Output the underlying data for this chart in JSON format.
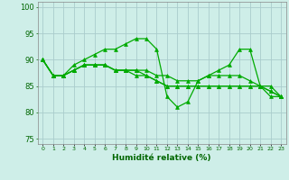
{
  "title": "",
  "xlabel": "Humidité relative (%)",
  "ylabel": "",
  "background_color": "#ceeee8",
  "grid_color": "#aacccc",
  "line_color": "#00aa00",
  "xlim": [
    -0.5,
    23.5
  ],
  "ylim": [
    74,
    101
  ],
  "yticks": [
    75,
    80,
    85,
    90,
    95,
    100
  ],
  "xtick_labels": [
    "0",
    "1",
    "2",
    "3",
    "4",
    "5",
    "6",
    "7",
    "8",
    "9",
    "10",
    "11",
    "12",
    "13",
    "14",
    "15",
    "16",
    "17",
    "18",
    "19",
    "20",
    "21",
    "22",
    "23"
  ],
  "series": [
    [
      90,
      87,
      87,
      89,
      90,
      91,
      92,
      92,
      93,
      94,
      94,
      92,
      83,
      81,
      82,
      86,
      87,
      88,
      89,
      92,
      92,
      85,
      83,
      83
    ],
    [
      90,
      87,
      87,
      88,
      89,
      89,
      89,
      88,
      88,
      88,
      88,
      87,
      87,
      86,
      86,
      86,
      87,
      87,
      87,
      87,
      86,
      85,
      85,
      83
    ],
    [
      90,
      87,
      87,
      88,
      89,
      89,
      89,
      88,
      88,
      88,
      87,
      86,
      85,
      85,
      85,
      85,
      85,
      85,
      85,
      85,
      85,
      85,
      84,
      83
    ],
    [
      90,
      87,
      87,
      88,
      89,
      89,
      89,
      88,
      88,
      87,
      87,
      86,
      85,
      85,
      85,
      85,
      85,
      85,
      85,
      85,
      85,
      85,
      84,
      83
    ]
  ]
}
